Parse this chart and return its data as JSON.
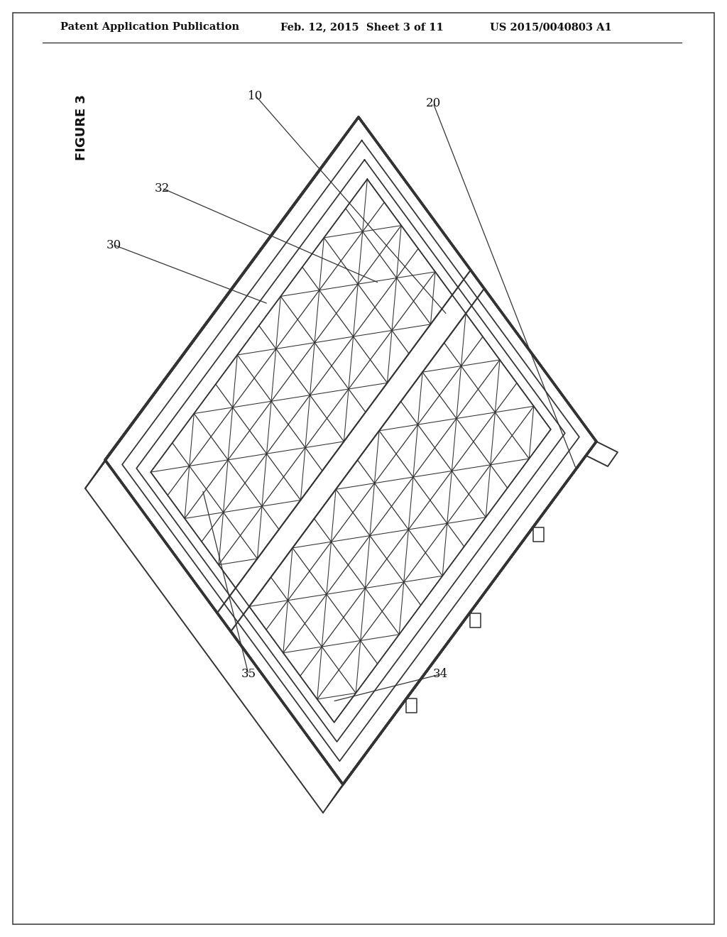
{
  "background_color": "#ffffff",
  "header_left": "Patent Application Publication",
  "header_center": "Feb. 12, 2015  Sheet 3 of 11",
  "header_right": "US 2015/0040803 A1",
  "figure_label": "FIGURE 3",
  "line_color": "#333333",
  "line_width": 1.4,
  "thin_line": 0.9,
  "thick_line": 2.5,
  "ref_fontsize": 12,
  "header_fontsize": 10.5,
  "fig_label_fontsize": 13
}
